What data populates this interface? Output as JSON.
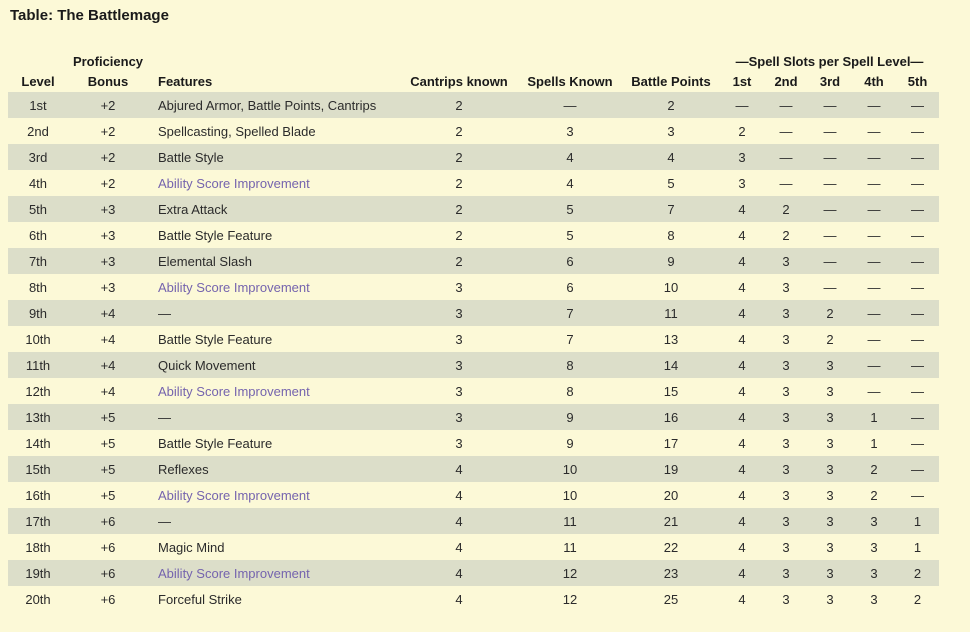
{
  "page": {
    "title": "Table: The Battlemage",
    "colors": {
      "background": "#FCF9D7",
      "stripe": "#DCDEC9",
      "text": "#2b2b2b",
      "title": "#1a1a1a",
      "link": "#7564AE"
    }
  },
  "table": {
    "proficiency_label": "Proficiency",
    "group_header": "—Spell Slots per Spell Level—",
    "columns": [
      "Level",
      "Bonus",
      "Features",
      "Cantrips known",
      "Spells Known",
      "Battle Points",
      "1st",
      "2nd",
      "3rd",
      "4th",
      "5th"
    ],
    "empty_cell": "—",
    "rows": [
      {
        "level": "1st",
        "bonus": "+2",
        "feature": "Abjured Armor, Battle Points, Cantrips",
        "feature_is_link": false,
        "cantrips": "2",
        "spells_known": "—",
        "battle_points": "2",
        "slots": [
          "—",
          "—",
          "—",
          "—",
          "—"
        ]
      },
      {
        "level": "2nd",
        "bonus": "+2",
        "feature": "Spellcasting, Spelled Blade",
        "feature_is_link": false,
        "cantrips": "2",
        "spells_known": "3",
        "battle_points": "3",
        "slots": [
          "2",
          "—",
          "—",
          "—",
          "—"
        ]
      },
      {
        "level": "3rd",
        "bonus": "+2",
        "feature": "Battle Style",
        "feature_is_link": false,
        "cantrips": "2",
        "spells_known": "4",
        "battle_points": "4",
        "slots": [
          "3",
          "—",
          "—",
          "—",
          "—"
        ]
      },
      {
        "level": "4th",
        "bonus": "+2",
        "feature": "Ability Score Improvement",
        "feature_is_link": true,
        "cantrips": "2",
        "spells_known": "4",
        "battle_points": "5",
        "slots": [
          "3",
          "—",
          "—",
          "—",
          "—"
        ]
      },
      {
        "level": "5th",
        "bonus": "+3",
        "feature": "Extra Attack",
        "feature_is_link": false,
        "cantrips": "2",
        "spells_known": "5",
        "battle_points": "7",
        "slots": [
          "4",
          "2",
          "—",
          "—",
          "—"
        ]
      },
      {
        "level": "6th",
        "bonus": "+3",
        "feature": "Battle Style Feature",
        "feature_is_link": false,
        "cantrips": "2",
        "spells_known": "5",
        "battle_points": "8",
        "slots": [
          "4",
          "2",
          "—",
          "—",
          "—"
        ]
      },
      {
        "level": "7th",
        "bonus": "+3",
        "feature": "Elemental Slash",
        "feature_is_link": false,
        "cantrips": "2",
        "spells_known": "6",
        "battle_points": "9",
        "slots": [
          "4",
          "3",
          "—",
          "—",
          "—"
        ]
      },
      {
        "level": "8th",
        "bonus": "+3",
        "feature": "Ability Score Improvement",
        "feature_is_link": true,
        "cantrips": "3",
        "spells_known": "6",
        "battle_points": "10",
        "slots": [
          "4",
          "3",
          "—",
          "—",
          "—"
        ]
      },
      {
        "level": "9th",
        "bonus": "+4",
        "feature": "—",
        "feature_is_link": false,
        "cantrips": "3",
        "spells_known": "7",
        "battle_points": "11",
        "slots": [
          "4",
          "3",
          "2",
          "—",
          "—"
        ]
      },
      {
        "level": "10th",
        "bonus": "+4",
        "feature": "Battle Style Feature",
        "feature_is_link": false,
        "cantrips": "3",
        "spells_known": "7",
        "battle_points": "13",
        "slots": [
          "4",
          "3",
          "2",
          "—",
          "—"
        ]
      },
      {
        "level": "11th",
        "bonus": "+4",
        "feature": "Quick Movement",
        "feature_is_link": false,
        "cantrips": "3",
        "spells_known": "8",
        "battle_points": "14",
        "slots": [
          "4",
          "3",
          "3",
          "—",
          "—"
        ]
      },
      {
        "level": "12th",
        "bonus": "+4",
        "feature": "Ability Score Improvement",
        "feature_is_link": true,
        "cantrips": "3",
        "spells_known": "8",
        "battle_points": "15",
        "slots": [
          "4",
          "3",
          "3",
          "—",
          "—"
        ]
      },
      {
        "level": "13th",
        "bonus": "+5",
        "feature": "—",
        "feature_is_link": false,
        "cantrips": "3",
        "spells_known": "9",
        "battle_points": "16",
        "slots": [
          "4",
          "3",
          "3",
          "1",
          "—"
        ]
      },
      {
        "level": "14th",
        "bonus": "+5",
        "feature": "Battle Style Feature",
        "feature_is_link": false,
        "cantrips": "3",
        "spells_known": "9",
        "battle_points": "17",
        "slots": [
          "4",
          "3",
          "3",
          "1",
          "—"
        ]
      },
      {
        "level": "15th",
        "bonus": "+5",
        "feature": "Reflexes",
        "feature_is_link": false,
        "cantrips": "4",
        "spells_known": "10",
        "battle_points": "19",
        "slots": [
          "4",
          "3",
          "3",
          "2",
          "—"
        ]
      },
      {
        "level": "16th",
        "bonus": "+5",
        "feature": "Ability Score Improvement",
        "feature_is_link": true,
        "cantrips": "4",
        "spells_known": "10",
        "battle_points": "20",
        "slots": [
          "4",
          "3",
          "3",
          "2",
          "—"
        ]
      },
      {
        "level": "17th",
        "bonus": "+6",
        "feature": "—",
        "feature_is_link": false,
        "cantrips": "4",
        "spells_known": "11",
        "battle_points": "21",
        "slots": [
          "4",
          "3",
          "3",
          "3",
          "1"
        ]
      },
      {
        "level": "18th",
        "bonus": "+6",
        "feature": "Magic Mind",
        "feature_is_link": false,
        "cantrips": "4",
        "spells_known": "11",
        "battle_points": "22",
        "slots": [
          "4",
          "3",
          "3",
          "3",
          "1"
        ]
      },
      {
        "level": "19th",
        "bonus": "+6",
        "feature": "Ability Score Improvement",
        "feature_is_link": true,
        "cantrips": "4",
        "spells_known": "12",
        "battle_points": "23",
        "slots": [
          "4",
          "3",
          "3",
          "3",
          "2"
        ]
      },
      {
        "level": "20th",
        "bonus": "+6",
        "feature": "Forceful Strike",
        "feature_is_link": false,
        "cantrips": "4",
        "spells_known": "12",
        "battle_points": "25",
        "slots": [
          "4",
          "3",
          "3",
          "3",
          "2"
        ]
      }
    ]
  }
}
